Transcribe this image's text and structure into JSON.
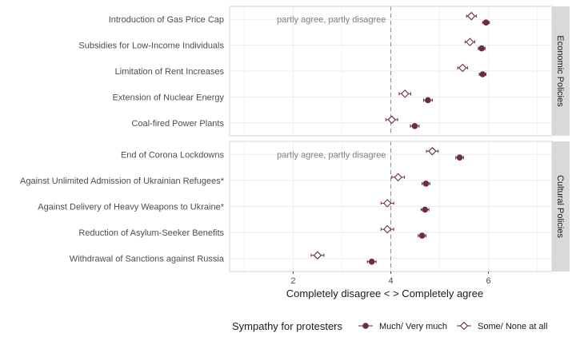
{
  "chart_data": {
    "type": "dot-errorbar",
    "xlabel": "Completely disagree < > Completely agree",
    "xlim": [
      0.7,
      7.3
    ],
    "xticks": [
      2,
      4,
      6
    ],
    "reference_line": 4,
    "reference_label": "partly agree, partly disagree",
    "colors": {
      "series": "#6e2a4d",
      "panel_bg": "#ffffff",
      "grid": "#ebebeb",
      "strip_bg": "#d9d9d9",
      "ref_line": "#8c8c8c"
    },
    "legend": {
      "title": "Sympathy for protesters",
      "position": "bottom",
      "items": [
        {
          "label": "Much/ Very much",
          "shape": "filled-circle"
        },
        {
          "label": "Some/ None at all",
          "shape": "open-diamond"
        }
      ]
    },
    "panels": [
      {
        "strip": "Economic Policies",
        "categories": [
          "Introduction of Gas Price Cap",
          "Subsidies for Low-Income Individuals",
          "Limitation of Rent Increases",
          "Extension of Nuclear Energy",
          "Coal-fired Power Plants"
        ],
        "much": {
          "values": [
            5.95,
            5.86,
            5.88,
            4.76,
            4.49
          ],
          "err": [
            0.07,
            0.07,
            0.07,
            0.09,
            0.09
          ]
        },
        "some": {
          "values": [
            5.65,
            5.62,
            5.47,
            4.29,
            4.02
          ],
          "err": [
            0.1,
            0.1,
            0.1,
            0.12,
            0.12
          ]
        }
      },
      {
        "strip": "Cultural Policies",
        "categories": [
          "End of Corona Lockdowns",
          "Against Unlimited Admission of Ukrainian Refugees*",
          "Against Delivery of Heavy Weapons to Ukraine*",
          "Reduction of Asylum-Seeker Benefits",
          "Withdrawal of Sanctions against Russia"
        ],
        "much": {
          "values": [
            5.41,
            4.72,
            4.7,
            4.64,
            3.61
          ],
          "err": [
            0.08,
            0.08,
            0.08,
            0.08,
            0.09
          ]
        },
        "some": {
          "values": [
            4.85,
            4.15,
            3.93,
            3.93,
            2.5
          ],
          "err": [
            0.12,
            0.13,
            0.13,
            0.13,
            0.13
          ]
        }
      }
    ]
  }
}
